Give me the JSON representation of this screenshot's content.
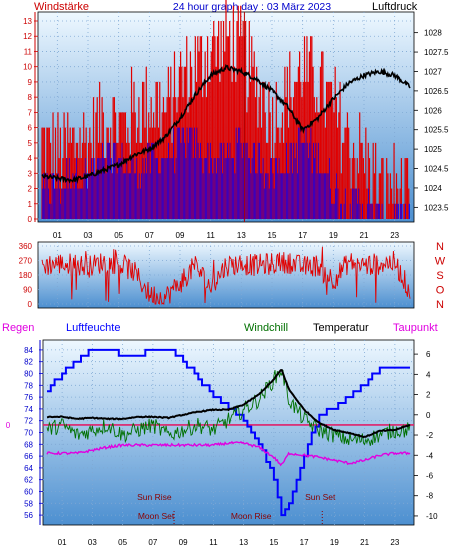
{
  "colors": {
    "red": "#e00000",
    "blue": "#0000ff",
    "green": "#007000",
    "black": "#000000",
    "magenta": "#e000e0",
    "darkred": "#8a0000",
    "axis_left": "#cc0000",
    "axis_blue": "#0000cc",
    "bg_top": "#eef8ff",
    "bg_bottom": "#4c8fd0"
  },
  "header": {
    "left": "Windstärke",
    "center": "24 hour graph day : 03 März 2023",
    "right": "Luftdruck"
  },
  "hour_ticks": [
    "01",
    "03",
    "05",
    "07",
    "09",
    "11",
    "13",
    "15",
    "17",
    "19",
    "21",
    "23"
  ],
  "chart_data": [
    {
      "type": "bar",
      "id": "wind_pressure",
      "title": "24 hour graph day : 03 März 2023",
      "xlabel": "",
      "y_left_label": "Windstärke",
      "y_right_label": "Luftdruck",
      "y_left_ticks": [
        0,
        1,
        2,
        3,
        4,
        5,
        6,
        7,
        8,
        9,
        10,
        11,
        12,
        13
      ],
      "y_right_ticks": [
        "1028",
        "1027.5",
        "1027",
        "1026.5",
        "1026",
        "1025.5",
        "1025",
        "1024.5",
        "1024",
        "1023.5"
      ],
      "ylim_left": [
        0,
        13
      ],
      "ylim_right": [
        1023.2,
        1028.3
      ],
      "grid": true,
      "series": [
        {
          "name": "Windstärke (gust)",
          "color": "red",
          "x": [
            0,
            1,
            2,
            3,
            4,
            5,
            6,
            7,
            8,
            9,
            10,
            11,
            12,
            13,
            14,
            15,
            16,
            17,
            18,
            19,
            20,
            21,
            22,
            23,
            24
          ],
          "values": [
            5,
            4,
            5,
            5,
            7,
            6,
            7,
            8,
            7,
            9,
            10,
            11,
            12,
            11,
            9,
            7,
            8,
            10,
            9,
            7,
            5,
            4,
            2,
            2,
            1
          ]
        },
        {
          "name": "Windstärke (mean)",
          "color": "blue",
          "x": [
            0,
            1,
            2,
            3,
            4,
            5,
            6,
            7,
            8,
            9,
            10,
            11,
            12,
            13,
            14,
            15,
            16,
            17,
            18,
            19,
            20,
            21,
            22,
            23,
            24
          ],
          "values": [
            2,
            2,
            3,
            3,
            4,
            4,
            3,
            4,
            4,
            5,
            5,
            4,
            4,
            5,
            4,
            3,
            4,
            5,
            4,
            2,
            1,
            1,
            0,
            0,
            0
          ]
        },
        {
          "name": "Luftdruck",
          "color": "black",
          "x": [
            0,
            1,
            2,
            3,
            4,
            5,
            6,
            7,
            8,
            9,
            10,
            11,
            12,
            13,
            14,
            15,
            16,
            17,
            18,
            19,
            20,
            21,
            22,
            23,
            24
          ],
          "values": [
            1024.3,
            1024.25,
            1024.2,
            1024.3,
            1024.45,
            1024.6,
            1024.85,
            1025.0,
            1025.3,
            1025.8,
            1026.4,
            1026.9,
            1027.1,
            1027.0,
            1026.8,
            1026.5,
            1026.1,
            1025.5,
            1025.8,
            1026.3,
            1026.7,
            1026.9,
            1027.0,
            1026.9,
            1026.6
          ]
        }
      ]
    },
    {
      "type": "scatter",
      "id": "wind_direction",
      "y_left_ticks": [
        "360",
        "270",
        "180",
        "90",
        "0"
      ],
      "y_right_labels": [
        "N",
        "W",
        "S",
        "O",
        "N"
      ],
      "ylim": [
        0,
        360
      ],
      "series": [
        {
          "name": "Windrichtung",
          "color": "red",
          "x": [
            0,
            1,
            2,
            3,
            4,
            5,
            6,
            7,
            8,
            9,
            10,
            11,
            12,
            13,
            14,
            15,
            16,
            17,
            18,
            19,
            20,
            21,
            22,
            23,
            24
          ],
          "values": [
            240,
            250,
            250,
            230,
            260,
            250,
            200,
            60,
            40,
            130,
            240,
            100,
            240,
            250,
            240,
            250,
            260,
            230,
            240,
            150,
            260,
            240,
            250,
            260,
            80
          ]
        }
      ]
    },
    {
      "type": "line",
      "id": "humidity_temperature",
      "legend": [
        "Regen",
        "Luftfeuchte",
        "Windchill",
        "Temperatur",
        "Taupunkt"
      ],
      "y_left_ticks": [
        84,
        82,
        80,
        78,
        76,
        74,
        72,
        70,
        68,
        66,
        64,
        62,
        60,
        58,
        56
      ],
      "y_right_ticks": [
        6,
        4,
        2,
        0,
        -2,
        -4,
        -6,
        -8,
        -10
      ],
      "ylim_left": [
        55,
        85
      ],
      "ylim_right": [
        -10.5,
        7
      ],
      "rain_zero_label": "0",
      "series": [
        {
          "name": "Luftfeuchte",
          "color": "blue",
          "axis": "left",
          "x": [
            0,
            1,
            2,
            3,
            4,
            5,
            6,
            7,
            8,
            9,
            10,
            11,
            12,
            13,
            14,
            15,
            15.5,
            16,
            17,
            18,
            19,
            20,
            21,
            22,
            23,
            24
          ],
          "values": [
            77,
            80,
            82,
            84,
            84,
            83,
            83,
            84,
            84,
            82,
            79,
            76,
            74,
            72,
            68,
            62,
            56,
            58,
            66,
            73,
            74,
            76,
            78,
            81,
            81,
            81
          ]
        },
        {
          "name": "Windchill",
          "color": "green",
          "axis": "right",
          "x": [
            0,
            1,
            2,
            3,
            4,
            5,
            6,
            7,
            8,
            9,
            10,
            11,
            12,
            13,
            14,
            15,
            15.5,
            16,
            17,
            18,
            19,
            20,
            21,
            22,
            23,
            24
          ],
          "values": [
            -1.5,
            -1.0,
            -2.0,
            -1.5,
            -1.0,
            -2.0,
            -1.5,
            -1.0,
            -2.0,
            -1.5,
            -1.0,
            -1.5,
            -0.5,
            0.5,
            1.5,
            3.5,
            4.5,
            1.5,
            -0.5,
            -1.5,
            -2.0,
            -2.5,
            -2.5,
            -2.0,
            -1.5,
            -1.5
          ]
        },
        {
          "name": "Temperatur",
          "color": "black",
          "axis": "right",
          "x": [
            0,
            1,
            2,
            3,
            4,
            5,
            6,
            7,
            8,
            9,
            10,
            11,
            12,
            13,
            14,
            15,
            15.5,
            16,
            17,
            18,
            19,
            20,
            21,
            22,
            23,
            24
          ],
          "values": [
            -0.2,
            -0.2,
            -0.4,
            -0.3,
            -0.4,
            -0.4,
            -0.2,
            -0.2,
            -0.3,
            0.0,
            0.3,
            0.5,
            0.5,
            1.0,
            2.0,
            3.5,
            4.5,
            2.5,
            0.5,
            -0.8,
            -1.5,
            -1.8,
            -2.2,
            -1.6,
            -1.5,
            -1.0
          ]
        },
        {
          "name": "Taupunkt",
          "color": "magenta",
          "axis": "right",
          "x": [
            0,
            1,
            2,
            3,
            4,
            5,
            6,
            7,
            8,
            9,
            10,
            11,
            12,
            13,
            14,
            15,
            15.5,
            16,
            17,
            18,
            19,
            20,
            21,
            22,
            23,
            24
          ],
          "values": [
            -3.8,
            -3.8,
            -3.8,
            -3.5,
            -3.2,
            -3.0,
            -3.0,
            -3.0,
            -3.0,
            -3.0,
            -3.0,
            -3.0,
            -2.8,
            -2.8,
            -3.2,
            -4.2,
            -5.0,
            -3.8,
            -4.0,
            -4.2,
            -4.5,
            -4.8,
            -4.5,
            -4.0,
            -3.8,
            -3.8
          ]
        },
        {
          "name": "Regen",
          "color": "red",
          "axis": "right",
          "x": [
            0,
            24
          ],
          "values": [
            -1.0,
            -1.0
          ]
        }
      ],
      "annotations": {
        "sun_rise": {
          "label": "Sun Rise",
          "hour": 7.1
        },
        "moon_set": {
          "label": "Moon Set",
          "hour": 8.4
        },
        "moon_rise": {
          "label": "Moon Rise",
          "hour": 13.5
        },
        "sun_set": {
          "label": "Sun Set",
          "hour": 18.2
        }
      }
    }
  ]
}
